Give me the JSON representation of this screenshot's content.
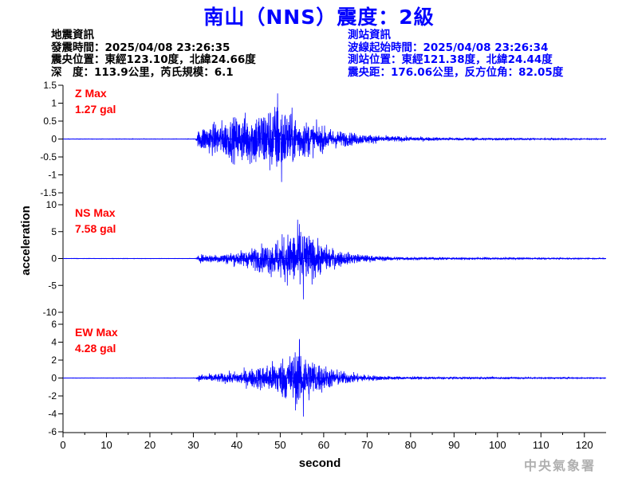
{
  "header": {
    "title": "南山（NNS）震度：2級",
    "quake_info": [
      "地震資訊",
      "發震時間：2025/04/08 23:26:35",
      "震央位置：東經123.10度，北緯24.66度",
      "深　度：113.9公里，芮氏規模：6.1"
    ],
    "station_info": [
      "測站資訊",
      "波線起始時間：2025/04/08 23:26:34",
      "測站位置：東經121.38度，北緯24.44度",
      "震央距：176.06公里，反方位角：82.05度"
    ]
  },
  "watermark": "中央氣象署",
  "colors": {
    "trace": "#0000ff",
    "max_label": "#ff0000",
    "title": "#0000ff",
    "station_info": "#0000ff"
  },
  "chart_data": {
    "type": "line",
    "xlabel": "second",
    "ylabel": "acceleration",
    "xlim": [
      0,
      125
    ],
    "x_ticks": [
      0,
      10,
      20,
      30,
      40,
      50,
      60,
      70,
      80,
      90,
      100,
      110,
      120
    ],
    "grid": false,
    "series": [
      {
        "name": "Z",
        "max_label": "Z Max",
        "max_value": "1.27 gal",
        "ylim": [
          -1.5,
          1.5
        ],
        "y_ticks": [
          1.5,
          1,
          0.5,
          0,
          -0.5,
          -1,
          -1.5
        ],
        "envelope": {
          "onset": 30.5,
          "peak_time": 50,
          "peak": 1.27,
          "min": -1.2,
          "coda_end": 100
        }
      },
      {
        "name": "NS",
        "max_label": "NS Max",
        "max_value": "7.58 gal",
        "ylim": [
          -10,
          10
        ],
        "y_ticks": [
          10,
          5,
          0,
          -5,
          -10
        ],
        "envelope": {
          "onset": 30.5,
          "peak_time": 55,
          "peak": 6.4,
          "min": -7.58,
          "coda_end": 100
        }
      },
      {
        "name": "EW",
        "max_label": "EW Max",
        "max_value": "4.28 gal",
        "ylim": [
          -6,
          6
        ],
        "y_ticks": [
          6,
          4,
          2,
          0,
          -2,
          -4,
          -6
        ],
        "envelope": {
          "onset": 30.5,
          "peak_time": 55,
          "peak": 4.28,
          "min": -4.3,
          "coda_end": 100
        }
      }
    ]
  }
}
